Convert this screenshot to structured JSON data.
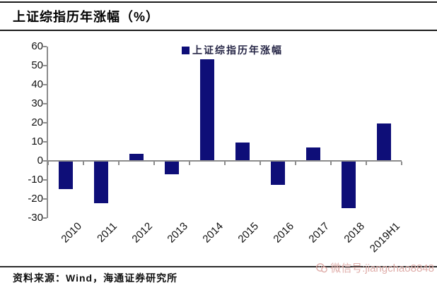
{
  "header": {
    "title": "上证综指历年涨幅（%）"
  },
  "chart_data": {
    "type": "bar",
    "title": "上证综指历年涨幅（%）",
    "legend": [
      "上证综指历年涨幅"
    ],
    "legend_position": "top-center",
    "categories": [
      "2010",
      "2011",
      "2012",
      "2013",
      "2014",
      "2015",
      "2016",
      "2017",
      "2018",
      "2019H1"
    ],
    "values": [
      -14.3,
      -21.7,
      3.2,
      -6.7,
      52.9,
      9.4,
      -12.3,
      6.6,
      -24.6,
      19.4
    ],
    "xlabel": "",
    "ylabel": "",
    "ylim": [
      -30,
      60
    ],
    "yticks": [
      60,
      50,
      40,
      30,
      20,
      10,
      0,
      -10,
      -20,
      -30
    ],
    "grid": false,
    "bar_color": "#0e0e78",
    "axis_color": "#8c8c8c"
  },
  "footer": {
    "source": "资料来源：Wind，海通证券研究所",
    "watermark": "微信号:jiangchao8848",
    "watermark_color": "#dfaca8"
  }
}
